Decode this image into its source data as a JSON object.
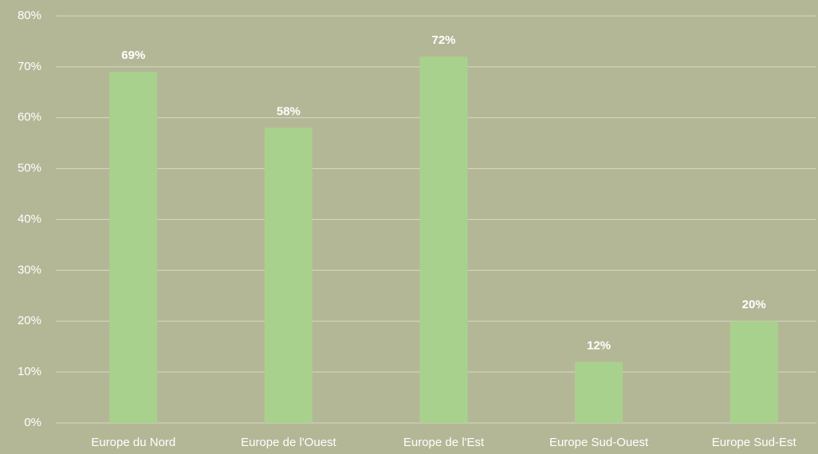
{
  "chart_data": {
    "type": "bar",
    "categories": [
      "Europe du Nord",
      "Europe de l'Ouest",
      "Europe de l'Est",
      "Europe Sud-Ouest",
      "Europe Sud-Est"
    ],
    "values": [
      69,
      58,
      72,
      12,
      20
    ],
    "value_labels": [
      "69%",
      "58%",
      "72%",
      "12%",
      "20%"
    ],
    "color": "#a9d18e",
    "ylim": [
      0,
      80
    ],
    "yticks": [
      {
        "value": 0,
        "label": "0%"
      },
      {
        "value": 10,
        "label": "10%"
      },
      {
        "value": 20,
        "label": "20%"
      },
      {
        "value": 30,
        "label": "30%"
      },
      {
        "value": 40,
        "label": "40%"
      },
      {
        "value": 50,
        "label": "50%"
      },
      {
        "value": 60,
        "label": "60%"
      },
      {
        "value": 70,
        "label": "70%"
      },
      {
        "value": 80,
        "label": "80%"
      }
    ],
    "grid": true
  }
}
